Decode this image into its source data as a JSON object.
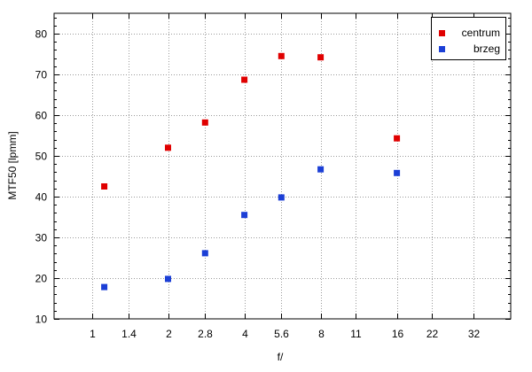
{
  "chart_data": {
    "type": "scatter",
    "xlabel": "f/",
    "ylabel": "MTF50 [lpmm]",
    "x_scale": "log",
    "x_ticks": [
      "1",
      "1.4",
      "2",
      "2.8",
      "4",
      "5.6",
      "8",
      "11",
      "16",
      "22",
      "32"
    ],
    "xlim": [
      0.71,
      45
    ],
    "ylim": [
      10,
      85
    ],
    "y_ticks": [
      10,
      20,
      30,
      40,
      50,
      60,
      70,
      80
    ],
    "grid": true,
    "legend_position": "top-right",
    "series": [
      {
        "name": "centrum",
        "color": "#e00000",
        "x": [
          1.12,
          2,
          2.8,
          4,
          5.6,
          8,
          16
        ],
        "y": [
          42.5,
          52,
          58.2,
          68.7,
          74.5,
          74.2,
          54.3
        ]
      },
      {
        "name": "brzeg",
        "color": "#1c3fd6",
        "x": [
          1.12,
          2,
          2.8,
          4,
          5.6,
          8,
          16
        ],
        "y": [
          17.8,
          19.8,
          26.1,
          35.5,
          39.8,
          46.7,
          45.8
        ]
      }
    ]
  }
}
